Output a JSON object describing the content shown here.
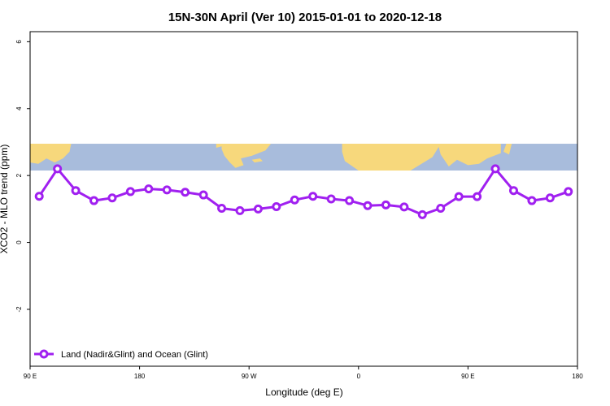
{
  "chart_data": {
    "type": "line",
    "title": "15N-30N April (Ver 10)   2015-01-01 to 2020-12-18",
    "xlabel": "Longitude (deg E)",
    "ylabel": "XCO2 - MLO trend (ppm)",
    "xlim": [
      90,
      390
    ],
    "ylim": [
      -3.7,
      6.3
    ],
    "x_ticks": [
      {
        "value": 90,
        "label": "90 E"
      },
      {
        "value": 150,
        "label": "180"
      },
      {
        "value": 210,
        "label": "90 W"
      },
      {
        "value": 270,
        "label": "0"
      },
      {
        "value": 330,
        "label": "90 E"
      },
      {
        "value": 390,
        "label": "180"
      }
    ],
    "y_ticks": [
      {
        "value": 6,
        "label": "6"
      },
      {
        "value": 4,
        "label": "4"
      },
      {
        "value": 2,
        "label": "2"
      },
      {
        "value": 0,
        "label": "0"
      },
      {
        "value": -2,
        "label": "-2"
      }
    ],
    "grid": false,
    "legend_position": "bottom-left",
    "map_strip": {
      "ymin": 2.15,
      "ymax": 2.95,
      "ocean_color": "#a8bcdc",
      "land_color": "#f7d87c"
    },
    "series": [
      {
        "name": "Land (Nadir&Glint) and Ocean (Glint)",
        "color": "#a020f0",
        "x": [
          95,
          105,
          115,
          125,
          135,
          145,
          155,
          165,
          175,
          185,
          195,
          205,
          215,
          225,
          235,
          245,
          255,
          265,
          275,
          285,
          295,
          305,
          315,
          325,
          335,
          345,
          355,
          365,
          375,
          385
        ],
        "y": [
          1.38,
          2.2,
          1.55,
          1.25,
          1.33,
          1.52,
          1.6,
          1.57,
          1.5,
          1.42,
          1.02,
          0.95,
          1.0,
          1.07,
          1.27,
          1.38,
          1.3,
          1.25,
          1.1,
          1.12,
          1.06,
          0.83,
          1.02,
          1.37,
          1.37,
          2.2,
          1.55,
          1.25,
          1.33,
          1.52
        ]
      }
    ]
  }
}
